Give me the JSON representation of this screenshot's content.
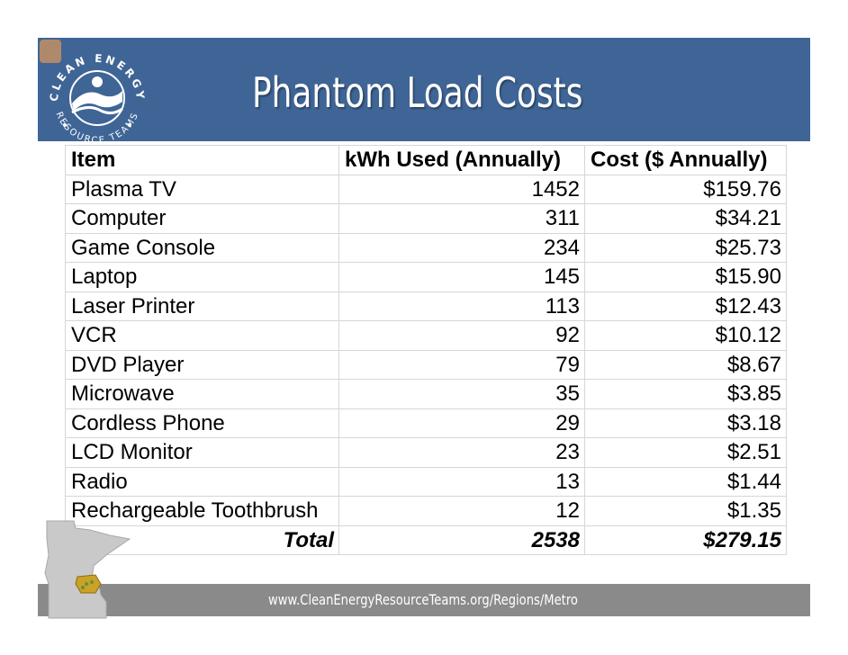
{
  "slide": {
    "title": "Phantom Load Costs",
    "footer_url": "www.CleanEnergyResourceTeams.org/Regions/Metro"
  },
  "logo": {
    "top_text": "CLEAN ENERGY",
    "bottom_text": "RESOURCE TEAMS",
    "icon": "cert-logo-icon"
  },
  "table": {
    "headers": [
      "Item",
      "kWh Used (Annually)",
      "Cost ($ Annually)"
    ],
    "rows": [
      {
        "item": "Plasma TV",
        "kwh": "1452",
        "cost": "$159.76"
      },
      {
        "item": "Computer",
        "kwh": "311",
        "cost": "$34.21"
      },
      {
        "item": "Game Console",
        "kwh": "234",
        "cost": "$25.73"
      },
      {
        "item": "Laptop",
        "kwh": "145",
        "cost": "$15.90"
      },
      {
        "item": "Laser Printer",
        "kwh": "113",
        "cost": "$12.43"
      },
      {
        "item": "VCR",
        "kwh": "92",
        "cost": "$10.12"
      },
      {
        "item": "DVD Player",
        "kwh": "79",
        "cost": "$8.67"
      },
      {
        "item": "Microwave",
        "kwh": "35",
        "cost": "$3.85"
      },
      {
        "item": "Cordless Phone",
        "kwh": "29",
        "cost": "$3.18"
      },
      {
        "item": "LCD Monitor",
        "kwh": "23",
        "cost": "$2.51"
      },
      {
        "item": "Radio",
        "kwh": "13",
        "cost": "$1.44"
      },
      {
        "item": "Rechargeable Toothbrush",
        "kwh": "12",
        "cost": "$1.35"
      }
    ],
    "total": {
      "label": "Total",
      "kwh": "2538",
      "cost": "$279.15"
    }
  },
  "colors": {
    "header_band": "#3f6596",
    "footer_band": "#8a8a8a",
    "map_fill": "#c9c9c9",
    "metro_highlight": "#c9a227"
  }
}
